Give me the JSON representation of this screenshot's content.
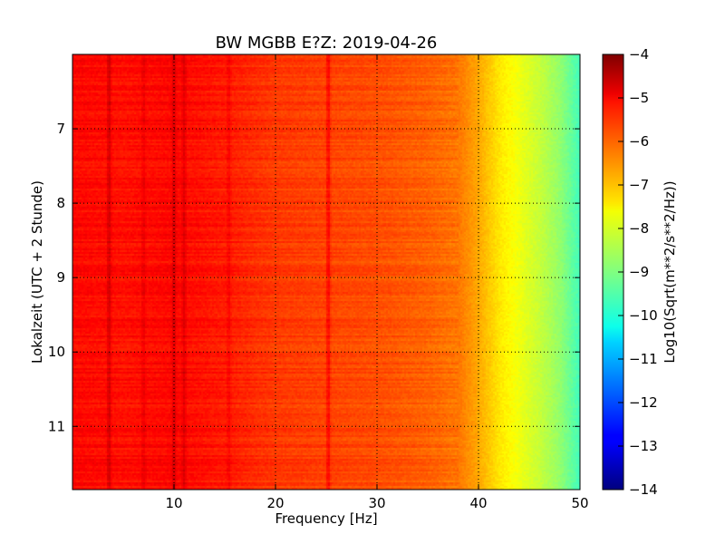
{
  "chart_data": {
    "type": "heatmap",
    "title": "BW MGBB E?Z: 2019-04-26",
    "xlabel": "Frequency [Hz]",
    "ylabel": "Lokalzeit (UTC + 2 Stunde)",
    "colorbar_label": "Log10(Sqrt(m**2/s**2/Hz))",
    "colormap": "jet",
    "xlim": [
      0,
      50
    ],
    "ylim": [
      11.85,
      6.0
    ],
    "y_inverted": true,
    "clim": [
      -14,
      -4
    ],
    "grid": true,
    "x_ticks": [
      {
        "value": 10,
        "label": "10"
      },
      {
        "value": 20,
        "label": "20"
      },
      {
        "value": 30,
        "label": "30"
      },
      {
        "value": 40,
        "label": "40"
      },
      {
        "value": 50,
        "label": "50"
      }
    ],
    "y_ticks": [
      {
        "value": 7,
        "label": "7"
      },
      {
        "value": 8,
        "label": "8"
      },
      {
        "value": 9,
        "label": "9"
      },
      {
        "value": 10,
        "label": "10"
      },
      {
        "value": 11,
        "label": "11"
      }
    ],
    "colorbar_ticks": [
      {
        "value": -4,
        "label": "−4"
      },
      {
        "value": -5,
        "label": "−5"
      },
      {
        "value": -6,
        "label": "−6"
      },
      {
        "value": -7,
        "label": "−7"
      },
      {
        "value": -8,
        "label": "−8"
      },
      {
        "value": -9,
        "label": "−9"
      },
      {
        "value": -10,
        "label": "−10"
      },
      {
        "value": -11,
        "label": "−11"
      },
      {
        "value": -12,
        "label": "−12"
      },
      {
        "value": -13,
        "label": "−13"
      },
      {
        "value": -14,
        "label": "−14"
      }
    ],
    "spectrum_profile": {
      "frequency_hz": [
        0,
        5,
        10,
        15,
        20,
        25,
        30,
        35,
        38,
        40,
        42,
        44,
        46,
        48,
        50
      ],
      "log10_amplitude": [
        -5.3,
        -5.4,
        -5.3,
        -5.5,
        -5.8,
        -5.9,
        -6.0,
        -6.2,
        -6.4,
        -6.9,
        -7.5,
        -7.9,
        -8.3,
        -8.8,
        -9.6
      ]
    },
    "spectral_lines_hz": [
      {
        "frequency": 3.6,
        "strength": 0.6
      },
      {
        "frequency": 7.0,
        "strength": 0.3
      },
      {
        "frequency": 10.0,
        "strength": 0.5
      },
      {
        "frequency": 11.0,
        "strength": 0.4
      },
      {
        "frequency": 15.4,
        "strength": 0.3
      },
      {
        "frequency": 25.2,
        "strength": 0.7
      }
    ]
  }
}
